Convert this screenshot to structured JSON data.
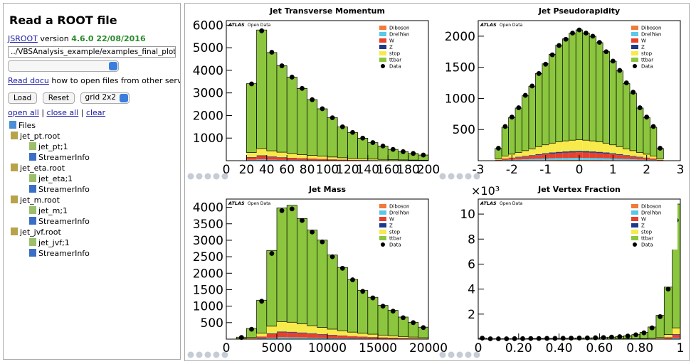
{
  "sidebar": {
    "title": "Read a ROOT file",
    "jsroot_link": "JSROOT",
    "version_label": "version",
    "version": "4.6.0 22/08/2016",
    "file_input": "../VBSAnalysis_example/examples_final_plots/jet_jvf",
    "docu_link": "Read docu",
    "docu_text": "how to open files from other servers.",
    "buttons": [
      "Load",
      "Reset"
    ],
    "layout_select": "grid 2x2",
    "links": [
      "open all",
      "close all",
      "clear"
    ],
    "separator": "|",
    "tree": {
      "root": "Files",
      "files": [
        {
          "name": "jet_pt.root",
          "items": [
            "jet_pt;1",
            "StreamerInfo"
          ]
        },
        {
          "name": "jet_eta.root",
          "items": [
            "jet_eta;1",
            "StreamerInfo"
          ]
        },
        {
          "name": "jet_m.root",
          "items": [
            "jet_m;1",
            "StreamerInfo"
          ]
        },
        {
          "name": "jet_jvf.root",
          "items": [
            "jet_jvf;1",
            "StreamerInfo"
          ]
        }
      ]
    }
  },
  "chart_data": [
    {
      "type": "histogram",
      "stacked": true,
      "title": "Jet Transverse Momentum",
      "experiment": "ATLAS",
      "note": "Open Data",
      "bins": [
        20,
        30,
        40,
        50,
        60,
        70,
        80,
        90,
        100,
        110,
        120,
        130,
        140,
        150,
        160,
        170,
        180,
        190,
        200
      ],
      "series": [
        {
          "name": "Diboson",
          "color": "#f07a3a",
          "values": [
            10,
            15,
            12,
            10,
            8,
            7,
            6,
            5,
            4,
            3,
            3,
            2,
            2,
            1,
            1,
            1,
            1,
            1
          ]
        },
        {
          "name": "DrellYan",
          "color": "#5bc8e8",
          "values": [
            30,
            40,
            30,
            25,
            20,
            17,
            14,
            12,
            10,
            8,
            6,
            5,
            4,
            3,
            3,
            2,
            2,
            1
          ]
        },
        {
          "name": "W",
          "color": "#e8402a",
          "values": [
            100,
            150,
            120,
            100,
            85,
            70,
            60,
            50,
            40,
            32,
            26,
            20,
            16,
            13,
            10,
            8,
            6,
            5
          ]
        },
        {
          "name": "Z",
          "color": "#1c3a8a",
          "values": [
            20,
            30,
            25,
            20,
            17,
            14,
            12,
            10,
            8,
            6,
            5,
            4,
            3,
            3,
            2,
            2,
            1,
            1
          ]
        },
        {
          "name": "stop",
          "color": "#f7ea4a",
          "values": [
            200,
            300,
            250,
            220,
            190,
            160,
            140,
            120,
            100,
            80,
            65,
            55,
            45,
            35,
            28,
            22,
            18,
            14
          ]
        },
        {
          "name": "ttbar",
          "color": "#8cc63f",
          "values": [
            3050,
            5250,
            4350,
            3830,
            3380,
            2930,
            2470,
            2100,
            1740,
            1370,
            1140,
            910,
            730,
            595,
            455,
            365,
            290,
            228
          ]
        }
      ],
      "points": {
        "name": "Data",
        "color": "#000000",
        "values": [
          3400,
          5750,
          4800,
          4200,
          3700,
          3200,
          2700,
          2300,
          1900,
          1500,
          1250,
          1000,
          800,
          650,
          500,
          400,
          320,
          250
        ]
      },
      "xlim": [
        0,
        200
      ],
      "ylim": [
        0,
        6200
      ],
      "xticks": [
        0,
        20,
        40,
        60,
        80,
        100,
        120,
        140,
        160,
        180,
        200
      ],
      "yticks": [
        1000,
        2000,
        3000,
        4000,
        5000,
        6000
      ]
    },
    {
      "type": "histogram",
      "stacked": true,
      "title": "Jet Pseudorapidity",
      "experiment": "ATLAS",
      "note": "Open Data",
      "bins": [
        -2.5,
        -2.3,
        -2.1,
        -1.9,
        -1.7,
        -1.5,
        -1.3,
        -1.1,
        -0.9,
        -0.7,
        -0.5,
        -0.3,
        -0.1,
        0.1,
        0.3,
        0.5,
        0.7,
        0.9,
        1.1,
        1.3,
        1.5,
        1.7,
        1.9,
        2.1,
        2.3,
        2.5
      ],
      "series": [
        {
          "name": "Diboson",
          "color": "#f07a3a",
          "values": [
            1,
            3,
            4,
            5,
            6,
            7,
            8,
            9,
            10,
            11,
            11,
            12,
            12,
            12,
            11,
            11,
            10,
            9,
            8,
            7,
            6,
            5,
            4,
            3,
            1
          ]
        },
        {
          "name": "DrellYan",
          "color": "#5bc8e8",
          "values": [
            3,
            7,
            10,
            13,
            16,
            19,
            22,
            25,
            28,
            30,
            31,
            32,
            33,
            32,
            31,
            30,
            28,
            25,
            22,
            19,
            16,
            13,
            10,
            7,
            3
          ]
        },
        {
          "name": "W",
          "color": "#e8402a",
          "values": [
            8,
            20,
            28,
            35,
            43,
            50,
            60,
            68,
            75,
            80,
            85,
            88,
            90,
            88,
            85,
            80,
            75,
            68,
            60,
            50,
            43,
            35,
            28,
            20,
            8
          ]
        },
        {
          "name": "Z",
          "color": "#1c3a8a",
          "values": [
            2,
            5,
            7,
            9,
            11,
            13,
            15,
            17,
            19,
            20,
            21,
            22,
            22,
            22,
            21,
            20,
            19,
            17,
            15,
            13,
            11,
            9,
            7,
            5,
            2
          ]
        },
        {
          "name": "stop",
          "color": "#f7ea4a",
          "values": [
            15,
            40,
            55,
            70,
            85,
            100,
            120,
            135,
            150,
            160,
            170,
            175,
            180,
            175,
            170,
            160,
            150,
            135,
            120,
            100,
            85,
            70,
            55,
            40,
            15
          ]
        },
        {
          "name": "ttbar",
          "color": "#8cc63f",
          "values": [
            168,
            462,
            588,
            714,
            882,
            1008,
            1176,
            1302,
            1428,
            1554,
            1638,
            1722,
            1764,
            1722,
            1680,
            1596,
            1470,
            1344,
            1218,
            1050,
            924,
            714,
            588,
            462,
            168
          ]
        }
      ],
      "points": {
        "name": "Data",
        "color": "#000000",
        "values": [
          200,
          550,
          700,
          850,
          1050,
          1200,
          1400,
          1550,
          1700,
          1850,
          1950,
          2050,
          2100,
          2050,
          2000,
          1900,
          1750,
          1600,
          1450,
          1250,
          1100,
          850,
          700,
          550,
          200
        ]
      },
      "xlim": [
        -3,
        3
      ],
      "ylim": [
        0,
        2250
      ],
      "xticks": [
        -3,
        -2,
        -1,
        0,
        1,
        2,
        3
      ],
      "yticks": [
        500,
        1000,
        1500,
        2000
      ]
    },
    {
      "type": "histogram",
      "stacked": true,
      "title": "Jet Mass",
      "experiment": "ATLAS",
      "note": "Open Data",
      "bins": [
        1000,
        2000,
        3000,
        4000,
        5000,
        6000,
        7000,
        8000,
        9000,
        10000,
        11000,
        12000,
        13000,
        14000,
        15000,
        16000,
        17000,
        18000,
        19000,
        20000
      ],
      "series": [
        {
          "name": "Diboson",
          "color": "#f07a3a",
          "values": [
            0,
            2,
            6,
            12,
            16,
            15,
            14,
            12,
            10,
            9,
            8,
            6,
            5,
            4,
            3,
            3,
            2,
            2,
            1
          ]
        },
        {
          "name": "DrellYan",
          "color": "#5bc8e8",
          "values": [
            1,
            5,
            15,
            30,
            40,
            38,
            35,
            31,
            27,
            23,
            19,
            16,
            13,
            11,
            9,
            8,
            6,
            5,
            3
          ]
        },
        {
          "name": "W",
          "color": "#e8402a",
          "values": [
            3,
            15,
            50,
            110,
            150,
            145,
            130,
            115,
            100,
            85,
            72,
            60,
            50,
            42,
            35,
            29,
            22,
            17,
            12
          ]
        },
        {
          "name": "Z",
          "color": "#1c3a8a",
          "values": [
            1,
            3,
            10,
            20,
            25,
            24,
            22,
            20,
            17,
            15,
            12,
            10,
            9,
            7,
            6,
            5,
            4,
            3,
            2
          ]
        },
        {
          "name": "stop",
          "color": "#f7ea4a",
          "values": [
            5,
            30,
            100,
            220,
            300,
            290,
            260,
            230,
            200,
            170,
            145,
            120,
            100,
            85,
            70,
            58,
            45,
            35,
            25
          ]
        },
        {
          "name": "ttbar",
          "color": "#8cc63f",
          "values": [
            50,
            270,
            1000,
            2300,
            3450,
            3550,
            3200,
            2900,
            2650,
            2250,
            1920,
            1600,
            1300,
            1120,
            900,
            770,
            590,
            450,
            320
          ]
        }
      ],
      "points": {
        "name": "Data",
        "color": "#000000",
        "values": [
          50,
          300,
          1150,
          2600,
          3900,
          3950,
          3600,
          3250,
          2950,
          2500,
          2150,
          1800,
          1450,
          1250,
          1000,
          850,
          650,
          500,
          350
        ]
      },
      "xlim": [
        0,
        20000
      ],
      "ylim": [
        0,
        4250
      ],
      "xticks": [
        0,
        5000,
        10000,
        15000,
        20000
      ],
      "yticks": [
        500,
        1000,
        1500,
        2000,
        2500,
        3000,
        3500,
        4000
      ]
    },
    {
      "type": "histogram",
      "stacked": true,
      "title": "Jet Vertex Fraction",
      "experiment": "ATLAS",
      "note": "Open Data",
      "y_multiplier": "×10³",
      "bins": [
        0,
        0.04,
        0.08,
        0.12,
        0.16,
        0.2,
        0.24,
        0.28,
        0.32,
        0.36,
        0.4,
        0.44,
        0.48,
        0.52,
        0.56,
        0.6,
        0.64,
        0.68,
        0.72,
        0.76,
        0.8,
        0.84,
        0.88,
        0.92,
        0.96,
        1
      ],
      "series": [
        {
          "name": "Diboson",
          "color": "#f07a3a",
          "values": [
            0,
            0,
            0,
            0,
            0,
            0,
            0,
            0,
            0,
            0,
            0,
            0,
            0,
            0,
            0,
            0,
            0,
            0,
            0,
            0,
            0,
            0,
            0,
            0.01,
            0.02
          ]
        },
        {
          "name": "DrellYan",
          "color": "#5bc8e8",
          "values": [
            0,
            0,
            0,
            0,
            0,
            0,
            0,
            0,
            0,
            0,
            0,
            0,
            0,
            0,
            0,
            0,
            0,
            0,
            0,
            0,
            0,
            0,
            0.01,
            0.03,
            0.08
          ]
        },
        {
          "name": "W",
          "color": "#e8402a",
          "values": [
            0,
            0,
            0,
            0,
            0,
            0,
            0,
            0,
            0,
            0,
            0,
            0,
            0,
            0,
            0,
            0,
            0,
            0.01,
            0.01,
            0.01,
            0.01,
            0.02,
            0.04,
            0.1,
            0.25
          ]
        },
        {
          "name": "Z",
          "color": "#1c3a8a",
          "values": [
            0,
            0,
            0,
            0,
            0,
            0,
            0,
            0,
            0,
            0,
            0,
            0,
            0,
            0,
            0,
            0,
            0,
            0,
            0,
            0,
            0,
            0,
            0.01,
            0.02,
            0.05
          ]
        },
        {
          "name": "stop",
          "color": "#f7ea4a",
          "values": [
            0.01,
            0,
            0,
            0,
            0,
            0,
            0.01,
            0.01,
            0.01,
            0.01,
            0.01,
            0.01,
            0.01,
            0.01,
            0.01,
            0.01,
            0.01,
            0.01,
            0.02,
            0.02,
            0.03,
            0.05,
            0.09,
            0.2,
            0.5
          ]
        },
        {
          "name": "ttbar",
          "color": "#8cc63f",
          "values": [
            0.07,
            0.03,
            0.03,
            0.03,
            0.03,
            0.03,
            0.04,
            0.04,
            0.05,
            0.05,
            0.06,
            0.07,
            0.08,
            0.09,
            0.1,
            0.12,
            0.15,
            0.19,
            0.24,
            0.33,
            0.5,
            0.9,
            1.75,
            3.8,
            9.9
          ]
        }
      ],
      "points": {
        "name": "Data",
        "color": "#000000",
        "values": [
          0.08,
          0.03,
          0.03,
          0.03,
          0.04,
          0.04,
          0.05,
          0.05,
          0.06,
          0.06,
          0.07,
          0.08,
          0.09,
          0.1,
          0.11,
          0.13,
          0.16,
          0.2,
          0.25,
          0.35,
          0.5,
          0.9,
          1.8,
          4,
          9.5
        ]
      },
      "xlim": [
        0,
        1
      ],
      "ylim": [
        0,
        11.2
      ],
      "xticks": [
        0,
        {
          "value": 0.2,
          "label": "0.20"
        },
        {
          "value": 0.4,
          "label": "0.40"
        },
        {
          "value": 0.6,
          "label": "0.60"
        },
        {
          "value": 0.8,
          "label": "0.80"
        },
        1
      ],
      "yticks": [
        2,
        4,
        6,
        8,
        10
      ]
    }
  ]
}
